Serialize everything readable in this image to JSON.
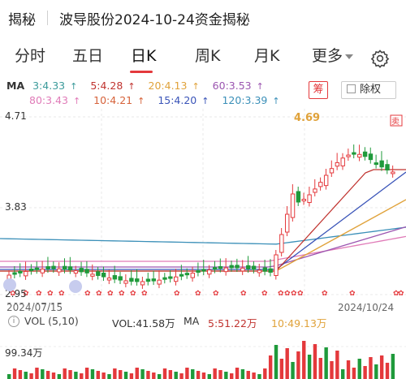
{
  "header": {
    "back_label": "揭秘",
    "title": "波导股份2024-10-24资金揭秘"
  },
  "tabs": [
    {
      "label": "分时"
    },
    {
      "label": "五日"
    },
    {
      "label": "日K"
    },
    {
      "label": "周K"
    },
    {
      "label": "月K"
    },
    {
      "label": "更多"
    }
  ],
  "ma": {
    "label": "MA",
    "items": [
      {
        "text": "3:4.33",
        "color": "#3a9a9a"
      },
      {
        "text": "5:4.28",
        "color": "#c0332f"
      },
      {
        "text": "20:4.13",
        "color": "#e0a23a"
      },
      {
        "text": "60:3.53",
        "color": "#9b55b0"
      },
      {
        "text": "80:3.43",
        "color": "#e07bb8"
      },
      {
        "text": "10:4.21",
        "color": "#d6623a"
      },
      {
        "text": "15:4.20",
        "color": "#3a54b8"
      },
      {
        "text": "120:3.39",
        "color": "#3a8fb8"
      }
    ],
    "arrow": "↑"
  },
  "buttons": {
    "chou": "筹",
    "chuquan": "除权"
  },
  "price_axis": {
    "top": "4.71",
    "mid": "3.83",
    "bottom": "2.95"
  },
  "annotations": {
    "high": "4.69",
    "sell_marker": "卖"
  },
  "dates": {
    "start": "2024/07/15",
    "end": "2024/10/24"
  },
  "volume": {
    "indicator": "VOL (5,10)",
    "vol": "VOL:41.58万",
    "ma_label": "MA",
    "ma5": "5:51.22万",
    "ma10": "10:49.13万",
    "axis_top": "99.34万"
  },
  "colors": {
    "up": "#e4393c",
    "down": "#1f9a3b"
  },
  "chart_data": {
    "type": "candlestick",
    "x_range": [
      "2024/07/15",
      "2024/10/24"
    ],
    "ylim": [
      2.95,
      4.71
    ],
    "last_close": 4.33,
    "period_high": 4.69,
    "volume_axis_max": "99.34万"
  }
}
